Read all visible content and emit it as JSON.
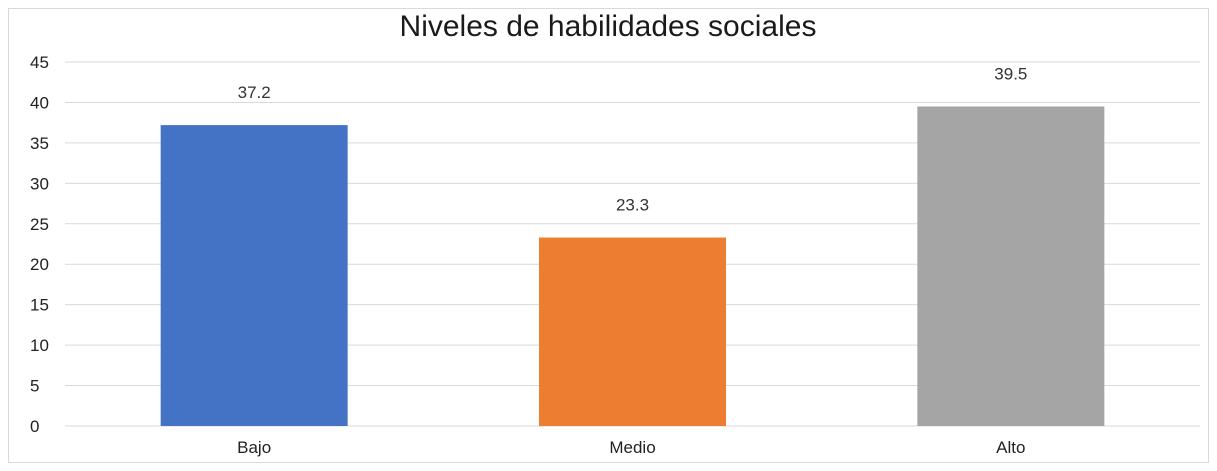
{
  "chart_data": {
    "type": "bar",
    "title": "Niveles de habilidades sociales",
    "categories": [
      "Bajo",
      "Medio",
      "Alto"
    ],
    "values": [
      37.2,
      23.3,
      39.5
    ],
    "data_labels": [
      "37.2",
      "23.3",
      "39.5"
    ],
    "colors": [
      "#4472C4",
      "#ED7D31",
      "#A5A5A5"
    ],
    "ylim": [
      0,
      45
    ],
    "yticks": [
      "0",
      "5",
      "10",
      "15",
      "20",
      "25",
      "30",
      "35",
      "40",
      "45"
    ],
    "xlabel": "",
    "ylabel": "",
    "grid": true,
    "legend": "none"
  }
}
